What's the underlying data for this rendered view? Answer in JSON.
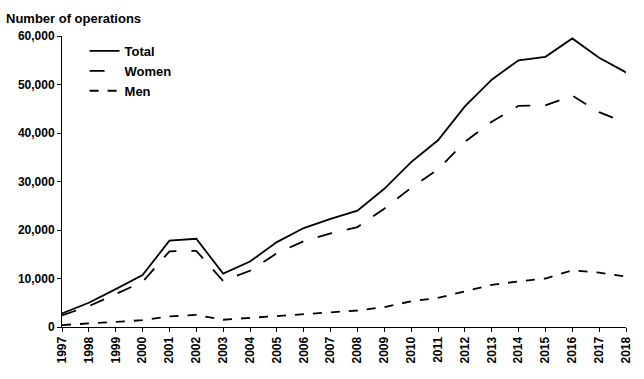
{
  "chart_data": {
    "type": "line",
    "y_label": "Number of operations",
    "categories": [
      "1997",
      "1998",
      "1999",
      "2000",
      "2001",
      "2002",
      "2003",
      "2004",
      "2005",
      "2006",
      "2007",
      "2008",
      "2009",
      "2010",
      "2011",
      "2012",
      "2013",
      "2014",
      "2015",
      "2016",
      "2017",
      "2018"
    ],
    "series": [
      {
        "name": "Total",
        "color": "#000000",
        "line_style": "solid",
        "values": [
          2800,
          5000,
          7800,
          10700,
          17800,
          18200,
          11000,
          13500,
          17500,
          20400,
          22300,
          24000,
          28500,
          34000,
          38500,
          45500,
          51000,
          55000,
          55700,
          59500,
          55500,
          52500
        ]
      },
      {
        "name": "Women",
        "color": "#000000",
        "line_style": "longdash",
        "values": [
          2400,
          4300,
          6800,
          9300,
          15600,
          15700,
          9500,
          11600,
          15200,
          17700,
          19300,
          20600,
          24400,
          28700,
          32500,
          38200,
          42300,
          45600,
          45700,
          47700,
          44300,
          42100
        ]
      },
      {
        "name": "Men",
        "color": "#000000",
        "line_style": "dash",
        "values": [
          400,
          700,
          1000,
          1400,
          2200,
          2500,
          1500,
          1900,
          2300,
          2700,
          3000,
          3400,
          4100,
          5300,
          6000,
          7300,
          8700,
          9400,
          10000,
          11700,
          11200,
          10400
        ]
      }
    ],
    "ylim": [
      0,
      60000
    ],
    "yticks": [
      0,
      {
        "value": 10000,
        "label": "10,000"
      },
      {
        "value": 20000,
        "label": "20,000"
      },
      {
        "value": 30000,
        "label": "30,000"
      },
      {
        "value": 40000,
        "label": "40,000"
      },
      {
        "value": 50000,
        "label": "50,000"
      },
      {
        "value": 60000,
        "label": "60,000"
      }
    ],
    "grid": false,
    "legend": "top-left"
  }
}
